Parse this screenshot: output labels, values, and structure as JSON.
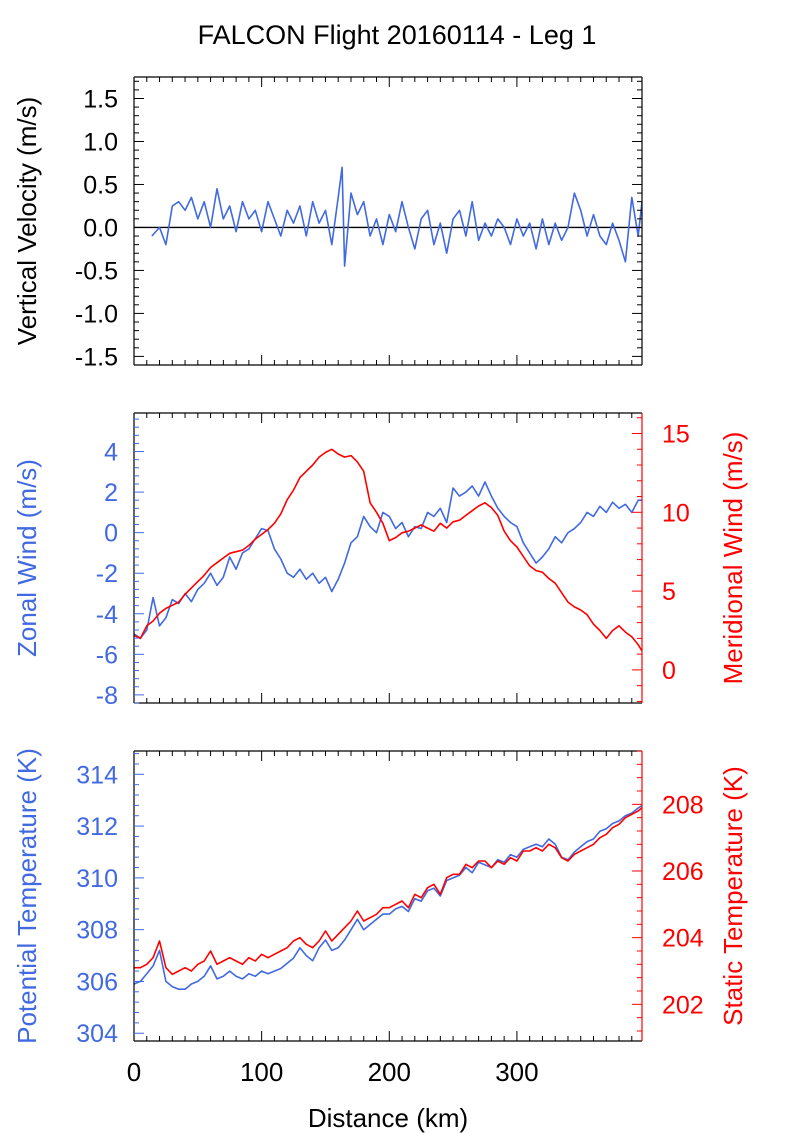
{
  "title": "FALCON Flight 20160114 - Leg 1",
  "colors": {
    "blue": "#4169e1",
    "red": "#ff0000",
    "black": "#000000"
  },
  "chart_data": [
    {
      "type": "line",
      "ylabel": "Vertical Velocity (m/s)",
      "xlim": [
        0,
        398
      ],
      "ylim": [
        -1.6,
        1.75
      ],
      "yticks": [
        "1.5",
        "1.0",
        "0.5",
        "0.0",
        "-0.5",
        "-1.0",
        "-1.5"
      ],
      "ytick_values": [
        1.5,
        1.0,
        0.5,
        0.0,
        -0.5,
        -1.0,
        -1.5
      ],
      "reference_line": 0.0,
      "series": [
        {
          "color": "#4169e1",
          "x": [
            14,
            20,
            25,
            30,
            35,
            40,
            45,
            50,
            55,
            60,
            65,
            70,
            75,
            80,
            85,
            90,
            95,
            100,
            105,
            110,
            115,
            120,
            125,
            130,
            135,
            140,
            145,
            150,
            155,
            160,
            163,
            165,
            170,
            175,
            180,
            185,
            190,
            195,
            200,
            205,
            210,
            215,
            220,
            225,
            230,
            235,
            240,
            245,
            250,
            255,
            260,
            265,
            270,
            275,
            280,
            285,
            290,
            295,
            300,
            305,
            310,
            315,
            320,
            325,
            330,
            335,
            340,
            345,
            350,
            355,
            360,
            365,
            370,
            375,
            380,
            385,
            390,
            395,
            398
          ],
          "y": [
            -0.1,
            0.0,
            -0.2,
            0.25,
            0.3,
            0.2,
            0.35,
            0.1,
            0.3,
            0.0,
            0.45,
            0.1,
            0.25,
            -0.05,
            0.3,
            0.1,
            0.2,
            -0.05,
            0.3,
            0.1,
            -0.1,
            0.2,
            0.05,
            0.25,
            -0.1,
            0.3,
            0.05,
            0.2,
            -0.2,
            0.35,
            0.7,
            -0.45,
            0.4,
            0.15,
            0.3,
            -0.1,
            0.1,
            -0.2,
            0.15,
            -0.05,
            0.3,
            0.0,
            -0.25,
            0.1,
            0.2,
            -0.2,
            0.05,
            -0.3,
            0.1,
            0.2,
            -0.1,
            0.3,
            -0.15,
            0.05,
            -0.1,
            0.1,
            0.0,
            -0.2,
            0.1,
            -0.1,
            0.05,
            -0.25,
            0.1,
            -0.2,
            0.05,
            -0.15,
            0.0,
            0.4,
            0.2,
            -0.1,
            0.15,
            -0.1,
            -0.2,
            0.05,
            -0.15,
            -0.4,
            0.35,
            -0.1,
            0.3
          ]
        }
      ]
    },
    {
      "type": "line",
      "ylabel": "Zonal Wind (m/s)",
      "ylabel_right": "Meridional Wind (m/s)",
      "xlim": [
        0,
        398
      ],
      "ylim": [
        -8.4,
        5.9
      ],
      "yticks": [
        "4",
        "2",
        "0",
        "-2",
        "-4",
        "-6",
        "-8"
      ],
      "ytick_values": [
        4,
        2,
        0,
        -2,
        -4,
        -6,
        -8
      ],
      "ylim_right": [
        -2.1,
        16.3
      ],
      "yticks_right": [
        "15",
        "10",
        "5",
        "0"
      ],
      "ytick_values_right": [
        15,
        10,
        5,
        0
      ],
      "series": [
        {
          "color": "#4169e1",
          "axis": "left",
          "x": [
            0,
            5,
            10,
            15,
            20,
            25,
            30,
            35,
            40,
            45,
            50,
            55,
            60,
            65,
            70,
            75,
            80,
            85,
            90,
            95,
            100,
            105,
            110,
            115,
            120,
            125,
            130,
            135,
            140,
            145,
            150,
            155,
            160,
            165,
            170,
            175,
            180,
            185,
            190,
            195,
            200,
            205,
            210,
            215,
            220,
            225,
            230,
            235,
            240,
            245,
            250,
            255,
            260,
            265,
            270,
            275,
            280,
            285,
            290,
            295,
            300,
            305,
            310,
            315,
            320,
            325,
            330,
            335,
            340,
            345,
            350,
            355,
            360,
            365,
            370,
            375,
            380,
            385,
            390,
            395,
            398
          ],
          "y": [
            -5.0,
            -5.2,
            -4.8,
            -3.2,
            -4.6,
            -4.2,
            -3.3,
            -3.5,
            -3.0,
            -3.4,
            -2.8,
            -2.5,
            -2.0,
            -2.6,
            -2.2,
            -1.2,
            -1.8,
            -1.0,
            -0.8,
            -0.3,
            0.2,
            0.1,
            -0.8,
            -1.3,
            -2.0,
            -2.2,
            -1.8,
            -2.3,
            -2.0,
            -2.5,
            -2.2,
            -2.9,
            -2.3,
            -1.5,
            -0.5,
            -0.2,
            0.8,
            0.3,
            0.0,
            1.0,
            0.8,
            0.2,
            0.5,
            -0.2,
            0.3,
            0.2,
            1.0,
            0.8,
            1.2,
            0.5,
            2.2,
            1.8,
            2.0,
            2.3,
            1.8,
            2.5,
            1.8,
            1.2,
            0.8,
            0.5,
            0.3,
            -0.5,
            -1.0,
            -1.5,
            -1.2,
            -0.8,
            -0.2,
            -0.5,
            0.0,
            0.2,
            0.5,
            1.0,
            0.8,
            1.3,
            1.0,
            1.5,
            1.2,
            1.4,
            1.0,
            1.6,
            1.6
          ]
        },
        {
          "color": "#ff0000",
          "axis": "right",
          "x": [
            0,
            5,
            10,
            15,
            20,
            25,
            30,
            35,
            40,
            45,
            50,
            55,
            60,
            65,
            70,
            75,
            80,
            85,
            90,
            95,
            100,
            105,
            110,
            115,
            120,
            125,
            130,
            135,
            140,
            145,
            150,
            155,
            160,
            165,
            170,
            175,
            180,
            185,
            190,
            195,
            200,
            205,
            210,
            215,
            220,
            225,
            230,
            235,
            240,
            245,
            250,
            255,
            260,
            265,
            270,
            275,
            280,
            285,
            290,
            295,
            300,
            305,
            310,
            315,
            320,
            325,
            330,
            335,
            340,
            345,
            350,
            355,
            360,
            365,
            370,
            375,
            380,
            385,
            390,
            395,
            398
          ],
          "y": [
            2.2,
            2.0,
            2.8,
            3.1,
            3.6,
            3.9,
            4.1,
            4.3,
            4.8,
            5.2,
            5.6,
            6.0,
            6.5,
            6.8,
            7.1,
            7.4,
            7.5,
            7.6,
            7.9,
            8.3,
            8.6,
            8.9,
            9.3,
            9.9,
            10.8,
            11.4,
            12.2,
            12.6,
            13.0,
            13.5,
            13.8,
            14.0,
            13.7,
            13.5,
            13.6,
            13.2,
            12.6,
            10.6,
            10.0,
            9.3,
            8.2,
            8.4,
            8.7,
            8.8,
            9.0,
            9.2,
            9.0,
            8.8,
            9.3,
            9.0,
            9.4,
            9.5,
            9.8,
            10.1,
            10.4,
            10.6,
            10.3,
            9.8,
            8.8,
            8.2,
            7.8,
            7.2,
            6.6,
            6.3,
            6.2,
            5.8,
            5.5,
            4.9,
            4.3,
            4.0,
            3.8,
            3.5,
            2.9,
            2.5,
            2.0,
            2.5,
            2.8,
            2.4,
            2.1,
            1.6,
            1.2
          ]
        }
      ]
    },
    {
      "type": "line",
      "ylabel": "Potential Temperature (K)",
      "ylabel_right": "Static Temperature (K)",
      "xlabel": "Distance (km)",
      "xlim": [
        0,
        398
      ],
      "xticks": [
        "0",
        "100",
        "200",
        "300"
      ],
      "xtick_values": [
        0,
        100,
        200,
        300
      ],
      "ylim": [
        303.7,
        314.9
      ],
      "yticks": [
        "314",
        "312",
        "310",
        "308",
        "306",
        "304"
      ],
      "ytick_values": [
        314,
        312,
        310,
        308,
        306,
        304
      ],
      "ylim_right": [
        200.9,
        209.6
      ],
      "yticks_right": [
        "208",
        "206",
        "204",
        "202"
      ],
      "ytick_values_right": [
        208,
        206,
        204,
        202
      ],
      "series": [
        {
          "color": "#4169e1",
          "axis": "left",
          "x": [
            0,
            5,
            10,
            15,
            20,
            25,
            30,
            35,
            40,
            45,
            50,
            55,
            60,
            65,
            70,
            75,
            80,
            85,
            90,
            95,
            100,
            105,
            110,
            115,
            120,
            125,
            130,
            135,
            140,
            145,
            150,
            155,
            160,
            165,
            170,
            175,
            180,
            185,
            190,
            195,
            200,
            205,
            210,
            215,
            220,
            225,
            230,
            235,
            240,
            245,
            250,
            255,
            260,
            265,
            270,
            275,
            280,
            285,
            290,
            295,
            300,
            305,
            310,
            315,
            320,
            325,
            330,
            335,
            340,
            345,
            350,
            355,
            360,
            365,
            370,
            375,
            380,
            385,
            390,
            395,
            398
          ],
          "y": [
            305.9,
            306.0,
            306.3,
            306.6,
            307.2,
            306.0,
            305.8,
            305.7,
            305.7,
            305.9,
            306.0,
            306.2,
            306.6,
            306.1,
            306.2,
            306.4,
            306.2,
            306.1,
            306.3,
            306.2,
            306.4,
            306.3,
            306.4,
            306.5,
            306.7,
            306.9,
            307.3,
            307.0,
            306.8,
            307.3,
            307.6,
            307.2,
            307.3,
            307.6,
            308.0,
            308.4,
            308.0,
            308.2,
            308.4,
            308.6,
            308.6,
            308.8,
            308.9,
            308.7,
            309.2,
            309.1,
            309.5,
            309.6,
            309.3,
            309.9,
            310.0,
            310.1,
            310.4,
            310.2,
            310.6,
            310.5,
            310.4,
            310.7,
            310.6,
            310.9,
            310.8,
            311.1,
            311.2,
            311.3,
            311.2,
            311.5,
            311.3,
            310.8,
            310.7,
            311.0,
            311.2,
            311.4,
            311.5,
            311.8,
            311.9,
            312.1,
            312.2,
            312.4,
            312.5,
            312.7,
            312.8
          ]
        },
        {
          "color": "#ff0000",
          "axis": "right",
          "x": [
            0,
            5,
            10,
            15,
            20,
            25,
            30,
            35,
            40,
            45,
            50,
            55,
            60,
            65,
            70,
            75,
            80,
            85,
            90,
            95,
            100,
            105,
            110,
            115,
            120,
            125,
            130,
            135,
            140,
            145,
            150,
            155,
            160,
            165,
            170,
            175,
            180,
            185,
            190,
            195,
            200,
            205,
            210,
            215,
            220,
            225,
            230,
            235,
            240,
            245,
            250,
            255,
            260,
            265,
            270,
            275,
            280,
            285,
            290,
            295,
            300,
            305,
            310,
            315,
            320,
            325,
            330,
            335,
            340,
            345,
            350,
            355,
            360,
            365,
            370,
            375,
            380,
            385,
            390,
            395,
            398
          ],
          "y": [
            203.1,
            203.1,
            203.2,
            203.4,
            203.9,
            203.1,
            202.9,
            203.0,
            203.1,
            203.0,
            203.2,
            203.3,
            203.6,
            203.2,
            203.3,
            203.4,
            203.3,
            203.2,
            203.4,
            203.3,
            203.5,
            203.4,
            203.5,
            203.6,
            203.7,
            203.9,
            204.0,
            203.8,
            203.7,
            203.9,
            204.2,
            203.9,
            204.1,
            204.3,
            204.5,
            204.8,
            204.5,
            204.6,
            204.7,
            204.9,
            204.9,
            205.0,
            205.1,
            204.9,
            205.3,
            205.2,
            205.5,
            205.6,
            205.3,
            205.8,
            205.9,
            205.9,
            206.2,
            206.1,
            206.3,
            206.3,
            206.1,
            206.3,
            206.2,
            206.4,
            206.3,
            206.6,
            206.6,
            206.7,
            206.6,
            206.8,
            206.7,
            206.4,
            206.3,
            206.5,
            206.6,
            206.7,
            206.8,
            207.0,
            207.1,
            207.3,
            207.4,
            207.6,
            207.7,
            207.8,
            207.9
          ]
        }
      ]
    }
  ]
}
